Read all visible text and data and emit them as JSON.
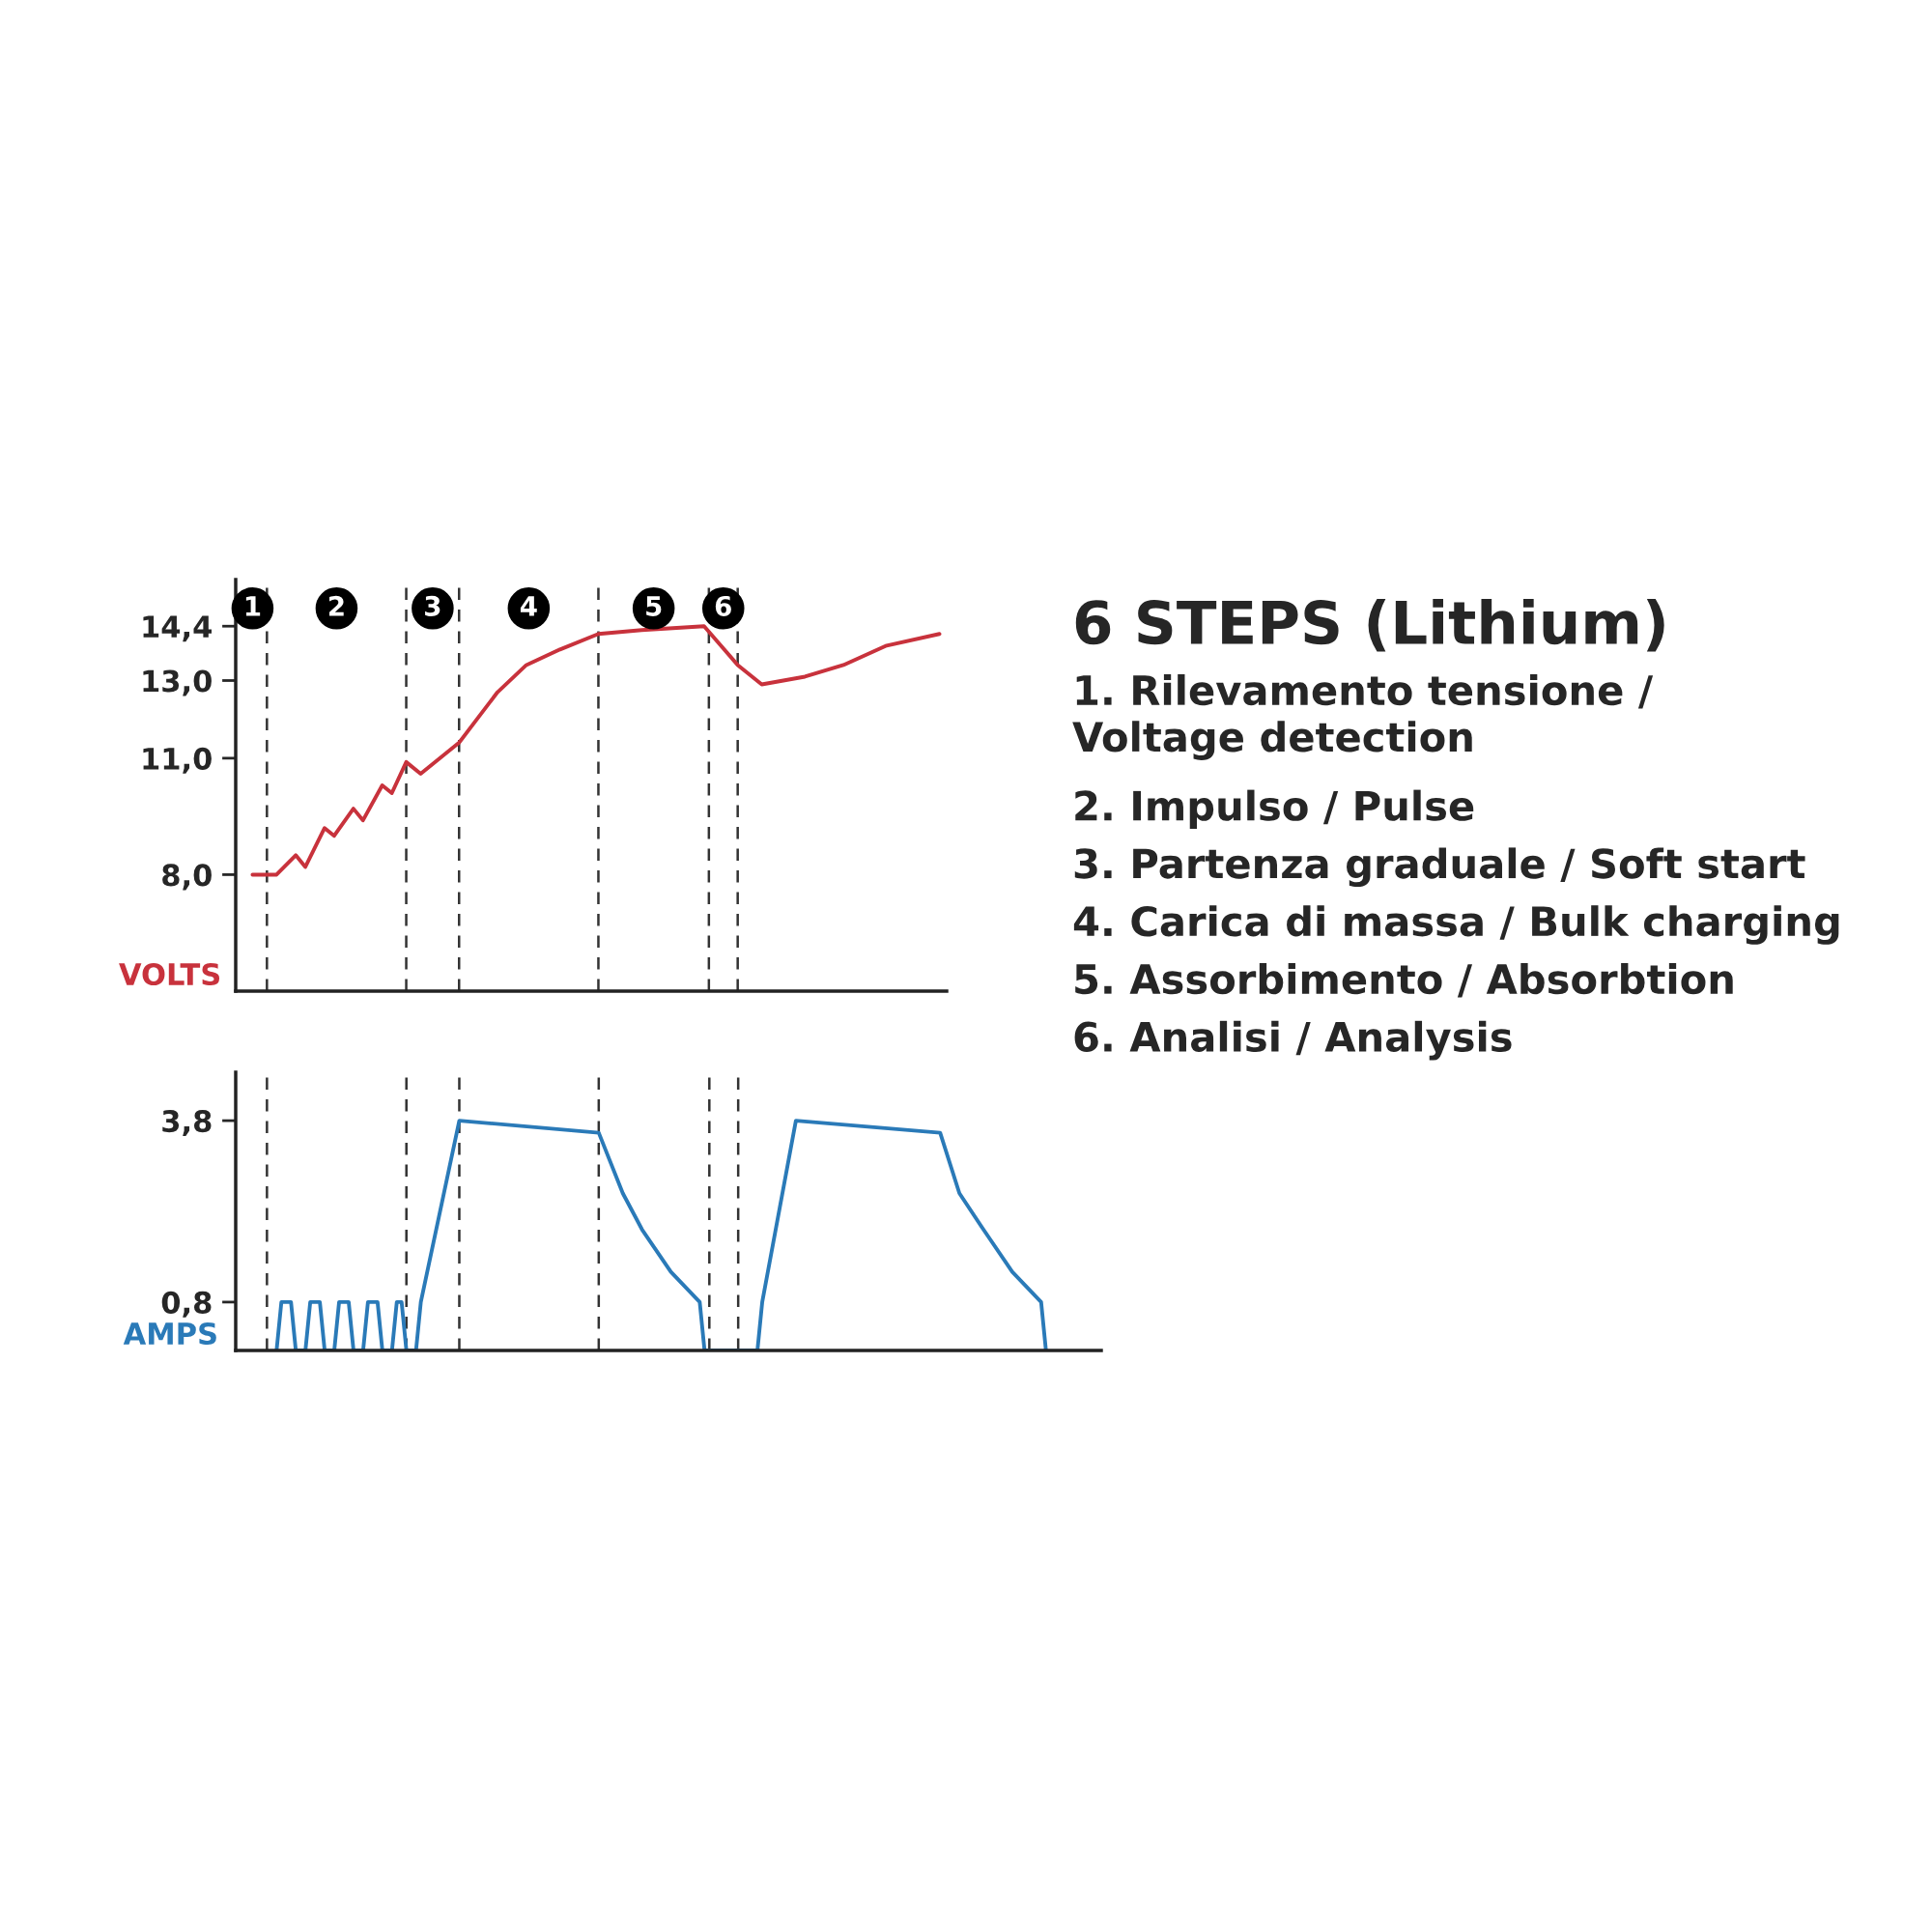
{
  "chart_data": [
    {
      "type": "line",
      "ylabel": "VOLTS",
      "tick_labels": "y",
      "grid": false,
      "marker": "none",
      "line_style": "solid",
      "ylim": [
        5,
        15.6
      ],
      "yticks": [
        {
          "value": 8.0,
          "label": "8,0"
        },
        {
          "value": 11.0,
          "label": "11,0"
        },
        {
          "value": 13.0,
          "label": "13,0"
        },
        {
          "value": 14.4,
          "label": "14,4"
        }
      ],
      "categories": [
        null,
        null,
        null,
        null,
        null,
        null,
        null,
        null,
        null,
        null,
        null,
        null,
        null,
        null,
        null,
        null,
        null,
        null,
        null,
        null,
        null,
        null,
        null,
        null,
        null,
        null,
        null,
        null,
        null,
        null,
        null,
        null,
        null,
        null,
        null,
        null,
        null,
        null,
        null,
        null,
        null,
        null,
        null,
        null,
        null,
        null,
        null,
        null,
        null,
        null,
        null,
        null,
        null,
        null,
        null,
        null,
        null,
        null,
        null,
        null,
        null,
        null,
        null,
        null,
        null,
        null,
        null,
        null,
        null,
        null,
        null,
        null,
        null,
        null,
        null,
        null,
        null,
        null,
        null,
        null,
        null,
        null,
        null,
        null,
        null,
        null,
        null,
        null,
        null,
        null,
        null,
        null,
        null,
        null,
        null,
        null,
        null,
        null,
        null,
        null,
        null,
        null,
        null,
        null,
        null,
        null,
        null,
        null,
        null,
        null,
        null,
        null,
        null,
        null,
        null,
        null,
        null,
        null,
        null,
        null,
        null,
        null,
        null,
        null,
        null,
        null,
        null,
        null,
        null,
        null,
        null,
        null,
        null,
        null,
        null,
        null,
        null,
        null,
        null,
        null,
        null,
        null,
        null,
        null,
        null,
        null,
        null,
        null
      ],
      "series": [
        {
          "color": "#c8323c",
          "values": [
            null,
            null,
            null,
            8.0,
            null,
            null,
            null,
            null,
            8.0,
            null,
            null,
            null,
            8.5,
            null,
            8.2,
            null,
            null,
            null,
            9.2,
            null,
            9.0,
            null,
            null,
            null,
            9.7,
            null,
            9.4,
            null,
            null,
            null,
            10.3,
            null,
            10.1,
            null,
            null,
            10.9,
            null,
            null,
            10.6,
            null,
            null,
            null,
            null,
            null,
            null,
            null,
            11.4,
            null,
            null,
            null,
            null,
            null,
            null,
            null,
            12.7,
            null,
            null,
            null,
            null,
            null,
            13.4,
            null,
            null,
            null,
            null,
            null,
            null,
            13.8,
            null,
            null,
            null,
            null,
            null,
            null,
            null,
            14.2,
            null,
            null,
            null,
            null,
            null,
            null,
            null,
            null,
            14.3,
            null,
            null,
            null,
            null,
            null,
            null,
            null,
            null,
            null,
            null,
            null,
            null,
            14.4,
            null,
            null,
            null,
            null,
            null,
            null,
            13.4,
            null,
            null,
            null,
            null,
            12.9,
            null,
            null,
            null,
            null,
            null,
            null,
            null,
            null,
            13.1,
            null,
            null,
            null,
            null,
            null,
            null,
            null,
            13.4,
            null,
            null,
            null,
            null,
            null,
            null,
            null,
            null,
            13.9,
            null,
            null,
            null,
            null,
            null,
            null,
            null,
            null,
            null,
            null,
            14.2,
            null
          ]
        }
      ],
      "annotations": [
        "1",
        "2",
        "3",
        "4",
        "5",
        "6"
      ]
    },
    {
      "type": "line",
      "ylabel": "AMPS",
      "tick_labels": "y",
      "grid": false,
      "marker": "none",
      "line_style": "solid",
      "ylim": [
        0,
        4.6
      ],
      "yticks": [
        {
          "value": 0.8,
          "label": "0,8"
        },
        {
          "value": 3.8,
          "label": "3,8"
        }
      ],
      "categories": [
        null,
        null,
        null,
        null,
        null,
        null,
        null,
        null,
        null,
        null,
        null,
        null,
        null,
        null,
        null,
        null,
        null,
        null,
        null,
        null,
        null,
        null,
        null,
        null,
        null,
        null,
        null,
        null,
        null,
        null,
        null,
        null,
        null,
        null,
        null,
        null,
        null,
        null,
        null,
        null,
        null,
        null,
        null,
        null,
        null,
        null,
        null,
        null,
        null,
        null,
        null,
        null,
        null,
        null,
        null,
        null,
        null,
        null,
        null,
        null,
        null,
        null,
        null,
        null,
        null,
        null,
        null,
        null,
        null,
        null,
        null,
        null,
        null,
        null,
        null,
        null,
        null,
        null,
        null,
        null,
        null,
        null,
        null,
        null,
        null,
        null,
        null,
        null,
        null,
        null,
        null,
        null,
        null,
        null,
        null,
        null,
        null,
        null,
        null,
        null,
        null,
        null,
        null,
        null,
        null,
        null,
        null,
        null,
        null,
        null,
        null,
        null,
        null,
        null,
        null,
        null,
        null,
        null,
        null,
        null,
        null,
        null,
        null,
        null,
        null,
        null,
        null,
        null,
        null,
        null,
        null,
        null,
        null,
        null,
        null,
        null,
        null,
        null,
        null,
        null,
        null,
        null,
        null,
        null,
        null,
        null,
        null,
        null,
        null,
        null,
        null,
        null,
        null,
        null,
        null,
        null,
        null,
        null,
        null,
        null,
        null,
        null,
        null,
        null,
        null,
        null,
        null,
        null,
        null,
        null,
        null,
        null,
        null,
        null,
        null,
        null,
        null,
        null,
        null,
        null
      ],
      "series": [
        {
          "color": "#2a7ab8",
          "values": [
            null,
            null,
            null,
            null,
            null,
            null,
            null,
            null,
            0,
            0.8,
            null,
            0.8,
            0,
            null,
            0,
            0.8,
            null,
            0.8,
            0,
            null,
            0,
            0.8,
            null,
            0.8,
            0,
            null,
            0,
            0.8,
            null,
            0.8,
            0,
            null,
            0,
            0.8,
            0.8,
            0,
            null,
            0,
            0.8,
            null,
            null,
            null,
            null,
            null,
            null,
            null,
            3.8,
            null,
            null,
            null,
            null,
            null,
            null,
            null,
            null,
            null,
            null,
            null,
            null,
            null,
            null,
            null,
            null,
            null,
            null,
            null,
            null,
            null,
            null,
            null,
            null,
            null,
            null,
            null,
            null,
            3.6,
            null,
            null,
            null,
            null,
            2.6,
            null,
            null,
            null,
            2.0,
            null,
            null,
            null,
            null,
            null,
            1.3,
            null,
            null,
            null,
            null,
            null,
            0.8,
            0,
            null,
            null,
            null,
            null,
            null,
            null,
            null,
            null,
            null,
            null,
            0,
            0.8,
            null,
            null,
            null,
            null,
            null,
            null,
            3.8,
            null,
            null,
            null,
            null,
            null,
            null,
            null,
            null,
            null,
            null,
            null,
            null,
            null,
            null,
            null,
            null,
            null,
            null,
            null,
            null,
            null,
            null,
            null,
            null,
            null,
            null,
            null,
            null,
            null,
            3.6,
            null,
            null,
            null,
            2.6,
            null,
            null,
            null,
            null,
            2.0,
            null,
            null,
            null,
            null,
            null,
            1.3,
            null,
            null,
            null,
            null,
            null,
            0.8,
            0,
            null,
            null,
            null,
            null,
            null,
            null,
            null,
            null,
            null,
            null,
            null
          ]
        }
      ],
      "legend": false
    },
    {
      "type": "other",
      "title": "6 STEPS (Lithium)",
      "annotations": [
        "1. Rilevamento tensione /\nVoltage detection",
        "2. Impulso / Pulse",
        "3. Partenza graduale / Soft start",
        "4. Carica di massa / Bulk charging",
        "5. Assorbimento / Absorbtion",
        "6. Analisi / Analysis"
      ]
    }
  ]
}
